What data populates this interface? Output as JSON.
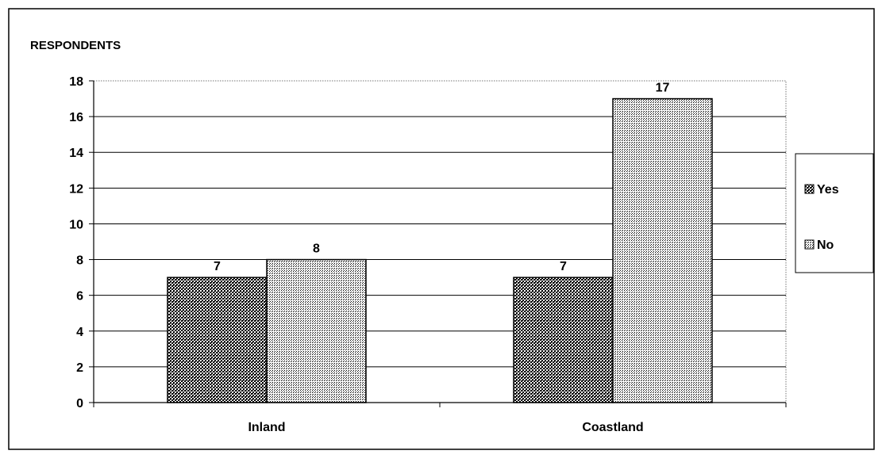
{
  "chart_data": {
    "type": "bar",
    "ylabel": "RESPONDENTS",
    "categories": [
      "Inland",
      "Coastland"
    ],
    "series": [
      {
        "name": "Yes",
        "values": [
          7,
          7
        ]
      },
      {
        "name": "No",
        "values": [
          8,
          17
        ]
      }
    ],
    "ylim": [
      0,
      18
    ],
    "yticks": [
      0,
      2,
      4,
      6,
      8,
      10,
      12,
      14,
      16,
      18
    ],
    "grid": true,
    "legend": "right",
    "data_labels": true
  }
}
